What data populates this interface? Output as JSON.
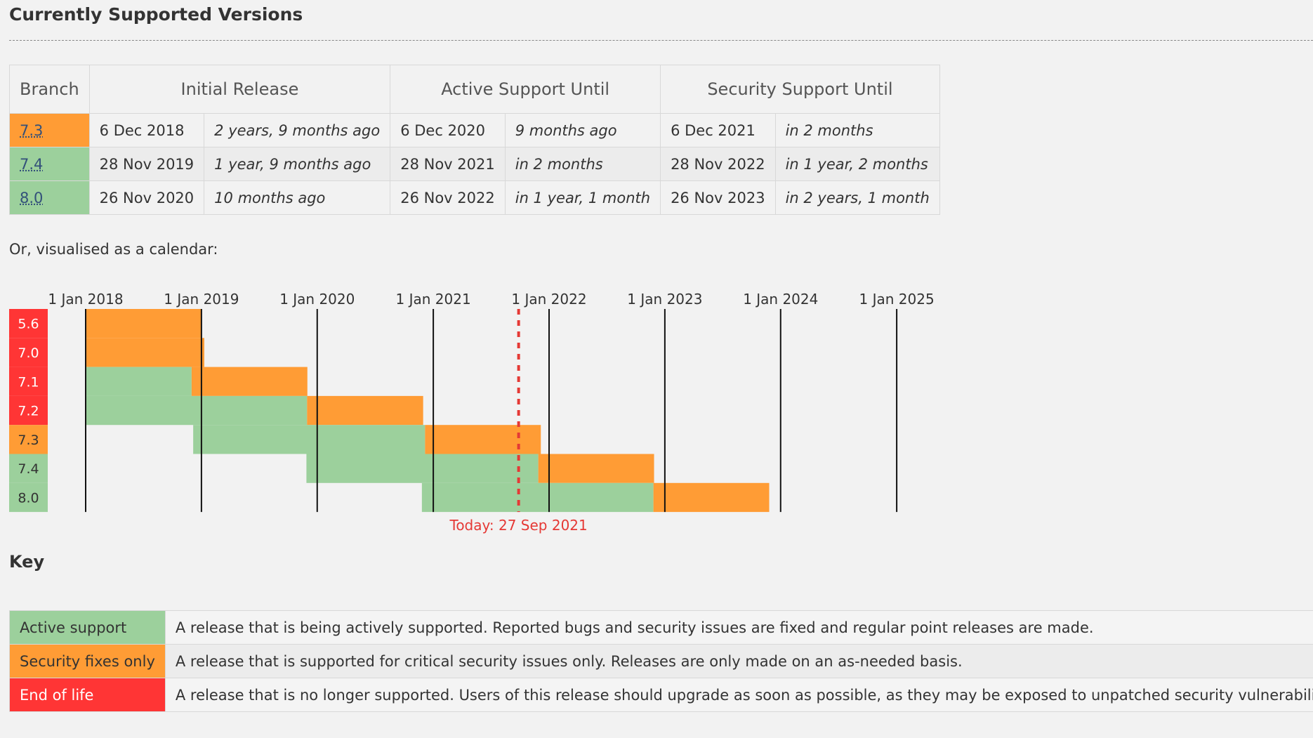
{
  "page": {
    "title": "Currently Supported Versions",
    "calendar_intro": "Or, visualised as a calendar:",
    "key_title": "Key"
  },
  "colors": {
    "security": "#ff9c35",
    "active": "#9cd09c",
    "eol": "#ff3535",
    "today": "#e53935"
  },
  "table": {
    "headers": [
      "Branch",
      "Initial Release",
      "Active Support Until",
      "Security Support Until"
    ],
    "rows": [
      {
        "branch": "7.3",
        "status": "security",
        "release_date": "6 Dec 2018",
        "release_ago": "2 years, 9 months ago",
        "active_date": "6 Dec 2020",
        "active_rel": "9 months ago",
        "security_date": "6 Dec 2021",
        "security_rel": "in 2 months"
      },
      {
        "branch": "7.4",
        "status": "active",
        "release_date": "28 Nov 2019",
        "release_ago": "1 year, 9 months ago",
        "active_date": "28 Nov 2021",
        "active_rel": "in 2 months",
        "security_date": "28 Nov 2022",
        "security_rel": "in 1 year, 2 months"
      },
      {
        "branch": "8.0",
        "status": "active",
        "release_date": "26 Nov 2020",
        "release_ago": "10 months ago",
        "active_date": "26 Nov 2022",
        "active_rel": "in 1 year, 1 month",
        "security_date": "26 Nov 2023",
        "security_rel": "in 2 years, 1 month"
      }
    ]
  },
  "chart_data": {
    "type": "gantt",
    "x_axis": {
      "ticks": [
        "2018-01-01",
        "2019-01-01",
        "2020-01-01",
        "2021-01-01",
        "2022-01-01",
        "2023-01-01",
        "2024-01-01",
        "2025-01-01"
      ],
      "tick_labels": [
        "1 Jan 2018",
        "1 Jan 2019",
        "1 Jan 2020",
        "1 Jan 2021",
        "1 Jan 2022",
        "1 Jan 2023",
        "1 Jan 2024",
        "1 Jan 2025"
      ]
    },
    "today": {
      "date": "2021-09-27",
      "label": "Today: 27 Sep 2021"
    },
    "branches": [
      {
        "name": "5.6",
        "status": "eol",
        "security": [
          "2018-01-01",
          "2018-12-31"
        ]
      },
      {
        "name": "7.0",
        "status": "eol",
        "security": [
          "2018-01-01",
          "2019-01-10"
        ]
      },
      {
        "name": "7.1",
        "status": "eol",
        "active": [
          "2018-01-01",
          "2018-12-01"
        ],
        "security": [
          "2018-12-01",
          "2019-12-01"
        ]
      },
      {
        "name": "7.2",
        "status": "eol",
        "active": [
          "2018-01-01",
          "2019-11-30"
        ],
        "security": [
          "2019-11-30",
          "2020-11-30"
        ]
      },
      {
        "name": "7.3",
        "status": "security",
        "active": [
          "2018-12-06",
          "2020-12-06"
        ],
        "security": [
          "2020-12-06",
          "2021-12-06"
        ]
      },
      {
        "name": "7.4",
        "status": "active",
        "active": [
          "2019-11-28",
          "2021-11-28"
        ],
        "security": [
          "2021-11-28",
          "2022-11-28"
        ]
      },
      {
        "name": "8.0",
        "status": "active",
        "active": [
          "2020-11-26",
          "2022-11-26"
        ],
        "security": [
          "2022-11-26",
          "2023-11-26"
        ]
      }
    ]
  },
  "key": [
    {
      "label": "Active support",
      "status": "active",
      "description": "A release that is being actively supported. Reported bugs and security issues are fixed and regular point releases are made."
    },
    {
      "label": "Security fixes only",
      "status": "security",
      "description": "A release that is supported for critical security issues only. Releases are only made on an as-needed basis."
    },
    {
      "label": "End of life",
      "status": "eol",
      "description": "A release that is no longer supported. Users of this release should upgrade as soon as possible, as they may be exposed to unpatched security vulnerabilities."
    }
  ]
}
